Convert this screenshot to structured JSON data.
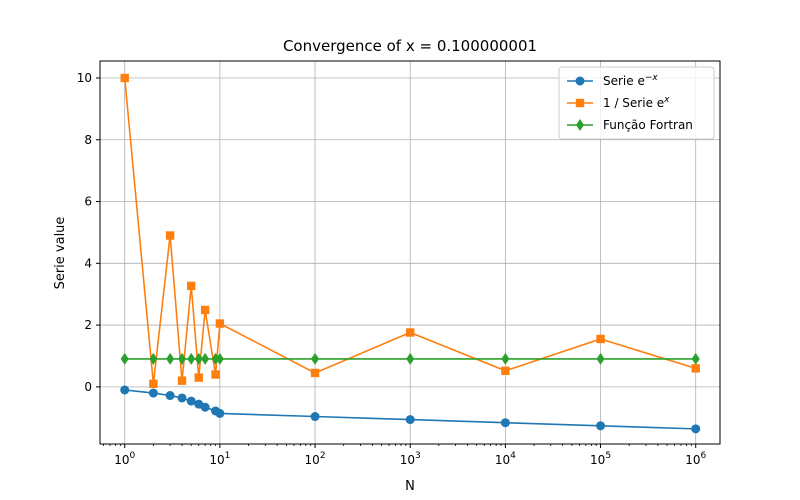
{
  "chart_data": {
    "type": "line",
    "title": "Convergence of x = 0.100000001",
    "xlabel": "N",
    "ylabel": "Serie value",
    "xscale": "log",
    "xlim": [
      0.55,
      1800000
    ],
    "ylim": [
      -1.85,
      10.55
    ],
    "x_ticks": [
      1,
      10,
      100,
      1000,
      10000,
      100000,
      1000000
    ],
    "x_tick_labels": [
      {
        "base": "10",
        "exp": "0"
      },
      {
        "base": "10",
        "exp": "1"
      },
      {
        "base": "10",
        "exp": "2"
      },
      {
        "base": "10",
        "exp": "3"
      },
      {
        "base": "10",
        "exp": "4"
      },
      {
        "base": "10",
        "exp": "5"
      },
      {
        "base": "10",
        "exp": "6"
      }
    ],
    "y_ticks": [
      0,
      2,
      4,
      6,
      8,
      10
    ],
    "y_tick_labels": [
      "0",
      "2",
      "4",
      "6",
      "8",
      "10"
    ],
    "grid": true,
    "legend_position": "top-right",
    "series": [
      {
        "name": "Serie e^{-x}",
        "name_base": "Serie e",
        "name_sup": "−x",
        "color": "#1f77b4",
        "marker": "circle",
        "x": [
          1,
          2,
          3,
          4,
          5,
          6,
          7,
          9,
          10,
          100,
          1000,
          10000,
          100000,
          1000000
        ],
        "y": [
          -0.1,
          -0.2,
          -0.28,
          -0.36,
          -0.46,
          -0.56,
          -0.66,
          -0.78,
          -0.86,
          -0.96,
          -1.06,
          -1.16,
          -1.26,
          -1.36
        ]
      },
      {
        "name": "1 / Serie e^{x}",
        "name_base": "1 / Serie e",
        "name_sup": "x",
        "color": "#ff7f0e",
        "marker": "square",
        "x": [
          1,
          2,
          3,
          4,
          5,
          6,
          7,
          9,
          10,
          100,
          1000,
          10000,
          100000,
          1000000
        ],
        "y": [
          10.0,
          0.1,
          4.9,
          0.2,
          3.27,
          0.3,
          2.49,
          0.4,
          2.05,
          0.45,
          1.76,
          0.52,
          1.55,
          0.6
        ]
      },
      {
        "name": "Função Fortran",
        "name_base": "Função Fortran",
        "name_sup": "",
        "color": "#2ca02c",
        "marker": "diamond",
        "x": [
          1,
          2,
          3,
          4,
          5,
          6,
          7,
          9,
          10,
          100,
          1000,
          10000,
          100000,
          1000000
        ],
        "y": [
          0.905,
          0.905,
          0.905,
          0.905,
          0.905,
          0.905,
          0.905,
          0.905,
          0.905,
          0.905,
          0.905,
          0.905,
          0.905,
          0.905
        ]
      }
    ]
  }
}
